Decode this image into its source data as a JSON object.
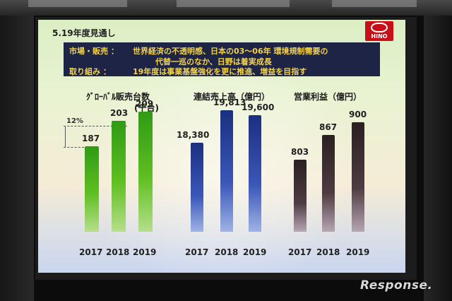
{
  "slide": {
    "title": "5.19年度見通し",
    "logo_text": "HINO",
    "summary": {
      "market_label": "市場・販売 ：",
      "market_line1": "世界経済の不透明感、日本の03～06年 環境規制需要の",
      "market_line2": "代替一巡のなか、日野は着実成長",
      "effort_label": "取り組み ：",
      "effort_line": "19年度は事業基盤強化を更に推進、増益を目指す"
    }
  },
  "chart_data": [
    {
      "type": "bar",
      "title": "ｸﾞﾛｰﾊﾞﾙ販売台数",
      "unit": "(千台)",
      "categories": [
        "2017",
        "2018",
        "2019"
      ],
      "values": [
        187,
        203,
        209
      ],
      "value_labels": [
        "187",
        "203",
        "209"
      ],
      "growth_label": "12%",
      "color": "#3fa81a"
    },
    {
      "type": "bar",
      "title": "連結売上高（億円）",
      "categories": [
        "2017",
        "2018",
        "2019"
      ],
      "values": [
        18380,
        19813,
        19600
      ],
      "value_labels": [
        "18,380",
        "19,813",
        "19,600"
      ],
      "color": "#2a3f9a"
    },
    {
      "type": "bar",
      "title": "営業利益（億円）",
      "categories": [
        "2017",
        "2018",
        "2019"
      ],
      "values": [
        803,
        867,
        900
      ],
      "value_labels": [
        "803",
        "867",
        "900"
      ],
      "color": "#3a2c30"
    }
  ],
  "watermark": "Response."
}
